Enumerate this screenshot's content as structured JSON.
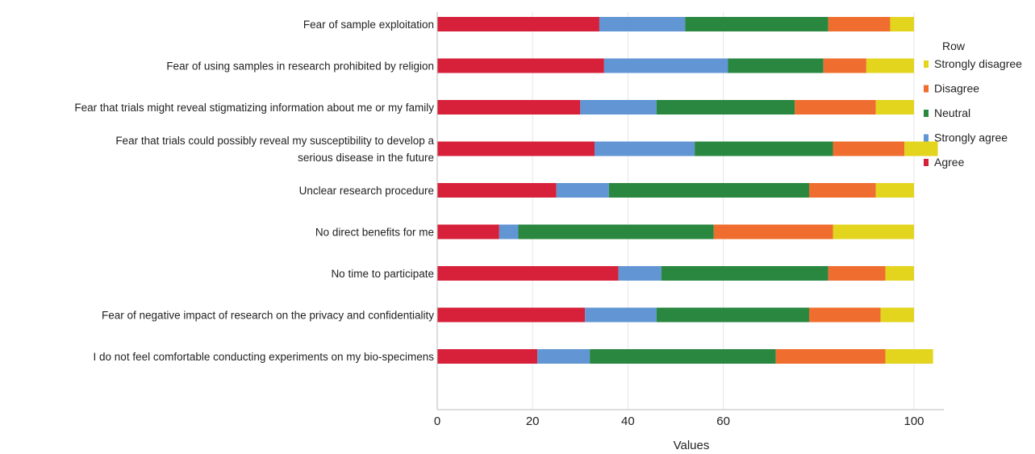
{
  "chart_data": {
    "type": "bar",
    "orientation": "horizontal",
    "stacked": true,
    "categories": [
      "Fear of sample exploitation",
      "Fear of using samples in research prohibited by religion",
      "Fear that trials might reveal stigmatizing information about me or my family",
      "Fear that trials could possibly reveal my susceptibility to develop a serious disease in the future",
      "Unclear research procedure",
      "No direct benefits for me",
      "No time to participate",
      "Fear of negative impact of research on the privacy and confidentiality",
      "I do not feel comfortable conducting experiments on my bio-specimens"
    ],
    "category_label_lines": [
      [
        "Fear of sample exploitation"
      ],
      [
        "Fear of using samples in research prohibited by religion"
      ],
      [
        "Fear that trials might reveal stigmatizing information about me or my family"
      ],
      [
        "Fear that trials could possibly reveal my susceptibility to develop a",
        "serious disease in the future"
      ],
      [
        "Unclear research procedure"
      ],
      [
        "No direct benefits for me"
      ],
      [
        "No time to participate"
      ],
      [
        "Fear of negative impact of research on the privacy and confidentiality"
      ],
      [
        "I do not feel comfortable conducting experiments on my bio-specimens"
      ]
    ],
    "series": [
      {
        "name": "Agree",
        "color": "#d7213a",
        "values": [
          34,
          35,
          30,
          33,
          25,
          13,
          38,
          31,
          21
        ]
      },
      {
        "name": "Strongly agree",
        "color": "#6195d4",
        "values": [
          18,
          26,
          16,
          21,
          11,
          4,
          9,
          15,
          11
        ]
      },
      {
        "name": "Neutral",
        "color": "#2a8740",
        "values": [
          30,
          20,
          29,
          29,
          42,
          41,
          35,
          32,
          39
        ]
      },
      {
        "name": "Disagree",
        "color": "#ef6d2e",
        "values": [
          13,
          9,
          17,
          15,
          14,
          25,
          12,
          15,
          23
        ]
      },
      {
        "name": "Strongly disagree",
        "color": "#e3d41e",
        "values": [
          5,
          10,
          8,
          7,
          8,
          17,
          6,
          7,
          10
        ]
      }
    ],
    "legend_title": "Row",
    "legend_position": "right",
    "legend_order": [
      "Strongly disagree",
      "Disagree",
      "Neutral",
      "Strongly agree",
      "Agree"
    ],
    "xlabel": "Values",
    "ylabel": "",
    "xlim": [
      0,
      100
    ],
    "x_ticks": [
      0,
      20,
      40,
      60,
      100
    ],
    "grid": true
  }
}
